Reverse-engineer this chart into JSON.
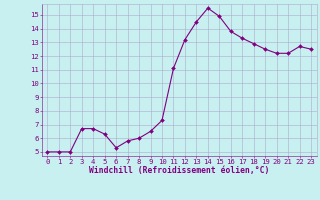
{
  "x": [
    0,
    1,
    2,
    3,
    4,
    5,
    6,
    7,
    8,
    9,
    10,
    11,
    12,
    13,
    14,
    15,
    16,
    17,
    18,
    19,
    20,
    21,
    22,
    23
  ],
  "y": [
    5.0,
    5.0,
    5.0,
    6.7,
    6.7,
    6.3,
    5.3,
    5.8,
    6.0,
    6.5,
    7.3,
    11.1,
    13.2,
    14.5,
    15.5,
    14.9,
    13.8,
    13.3,
    12.9,
    12.5,
    12.2,
    12.2,
    12.7,
    12.5
  ],
  "line_color": "#800080",
  "marker": "D",
  "markersize": 2.0,
  "linewidth": 0.8,
  "xlabel": "Windchill (Refroidissement éolien,°C)",
  "xlim": [
    -0.5,
    23.5
  ],
  "ylim": [
    4.7,
    15.8
  ],
  "yticks": [
    5,
    6,
    7,
    8,
    9,
    10,
    11,
    12,
    13,
    14,
    15
  ],
  "xticks": [
    0,
    1,
    2,
    3,
    4,
    5,
    6,
    7,
    8,
    9,
    10,
    11,
    12,
    13,
    14,
    15,
    16,
    17,
    18,
    19,
    20,
    21,
    22,
    23
  ],
  "bg_color": "#c8f0f0",
  "grid_color": "#aaaacc",
  "line_border_color": "#6a006a",
  "tick_color": "#800080",
  "label_color": "#800080",
  "xlabel_fontsize": 5.8,
  "tick_fontsize": 5.2
}
